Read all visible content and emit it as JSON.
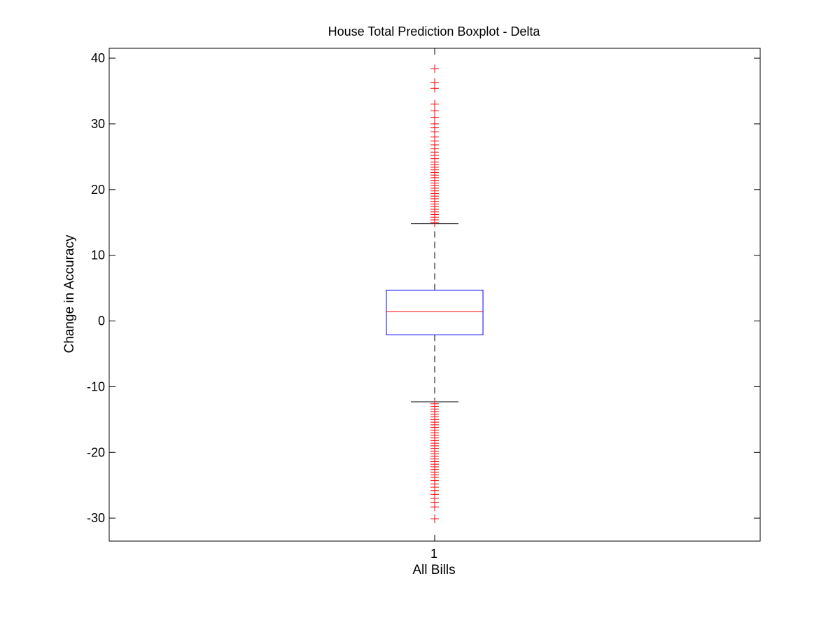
{
  "chart_data": {
    "type": "boxplot",
    "title": "House Total Prediction Boxplot - Delta",
    "xlabel": "All Bills",
    "ylabel": "Change in Accuracy",
    "ylim": [
      -33.5,
      41.5
    ],
    "yticks": [
      -30,
      -20,
      -10,
      0,
      10,
      20,
      30,
      40
    ],
    "categories": [
      "1"
    ],
    "grid": false,
    "box": {
      "whisker_low": -12.3,
      "q1": -2.1,
      "median": 1.4,
      "q3": 4.7,
      "whisker_high": 14.8
    },
    "outliers_high": [
      38.4,
      36.3,
      35.4,
      33.0,
      32.0,
      31.0,
      30.0,
      29.4,
      28.8,
      28.0,
      27.4,
      26.8,
      26.2,
      25.7,
      25.2,
      24.7,
      24.2,
      23.8,
      23.4,
      23.0,
      22.6,
      22.2,
      21.8,
      21.4,
      21.0,
      20.6,
      20.2,
      19.8,
      19.4,
      19.0,
      18.6,
      18.2,
      17.8,
      17.4,
      17.0,
      16.6,
      16.2,
      15.8,
      15.4,
      15.0
    ],
    "outliers_low": [
      -12.6,
      -13.0,
      -13.4,
      -13.8,
      -14.2,
      -14.6,
      -15.0,
      -15.4,
      -15.8,
      -16.2,
      -16.6,
      -17.0,
      -17.4,
      -17.8,
      -18.2,
      -18.6,
      -19.0,
      -19.4,
      -19.8,
      -20.2,
      -20.6,
      -21.0,
      -21.4,
      -21.8,
      -22.2,
      -22.6,
      -23.0,
      -23.4,
      -23.8,
      -24.3,
      -24.8,
      -25.3,
      -25.8,
      -26.4,
      -27.0,
      -27.6,
      -28.3,
      -30.1
    ],
    "colors": {
      "box": "#0000ff",
      "median": "#ff0000",
      "whisker": "#000000",
      "outlier": "#ff0000",
      "axes": "#000000"
    }
  }
}
